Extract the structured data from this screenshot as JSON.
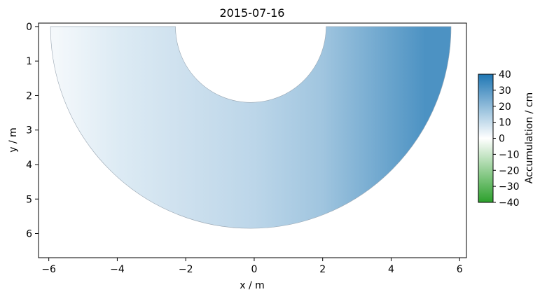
{
  "chart_data": {
    "type": "heatmap",
    "title": "2015-07-16",
    "xlabel": "x / m",
    "ylabel": "y / m",
    "xlim": [
      -6.3,
      6.2
    ],
    "ylim": [
      6.7,
      -0.1
    ],
    "xticks": [
      -6,
      -4,
      -2,
      0,
      2,
      4,
      6
    ],
    "xtick_labels": [
      "−6",
      "−4",
      "−2",
      "0",
      "2",
      "4",
      "6"
    ],
    "yticks": [
      0,
      1,
      2,
      3,
      4,
      5,
      6
    ],
    "ytick_labels": [
      "0",
      "1",
      "2",
      "3",
      "4",
      "5",
      "6"
    ],
    "colorbar": {
      "label": "Accumulation / cm",
      "range": [
        -40,
        40
      ],
      "ticks": [
        40,
        30,
        20,
        10,
        0,
        -10,
        -20,
        -30,
        -40
      ],
      "tick_labels": [
        "40",
        "30",
        "20",
        "10",
        "0",
        "−10",
        "−20",
        "−30",
        "−40"
      ],
      "colormap": [
        "#2ca02c",
        "#ffffff",
        "#1f77b4"
      ]
    },
    "field": {
      "shape": "half-annulus",
      "center": [
        -0.1,
        0.0
      ],
      "inner_radius": 2.2,
      "outer_radius": 5.85,
      "values_by_x": [
        {
          "x": -5.8,
          "value": 2
        },
        {
          "x": -4,
          "value": 6
        },
        {
          "x": -2,
          "value": 9
        },
        {
          "x": 0,
          "value": 12
        },
        {
          "x": 2,
          "value": 17
        },
        {
          "x": 4,
          "value": 27
        },
        {
          "x": 5,
          "value": 32
        }
      ]
    }
  },
  "colors": {
    "positive": "#1f77b4",
    "zero": "#ffffff",
    "negative": "#2ca02c"
  }
}
